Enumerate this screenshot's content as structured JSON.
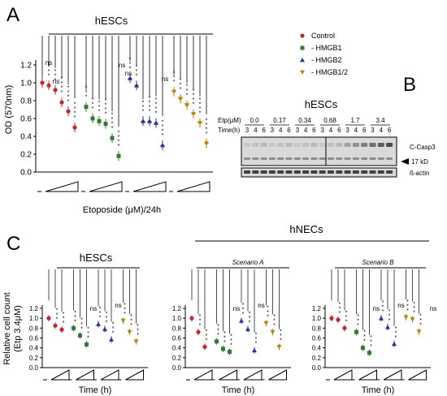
{
  "colors": {
    "control": "#c0282d",
    "hmgb1": "#2e7d32",
    "hmgb2": "#283593",
    "hmgb12": "#b8860b",
    "blot_bg": "#d9d9d9"
  },
  "panels": {
    "a": {
      "letter": "A",
      "title": "hESCs",
      "xlabel": "Etoposide (μM)/24h",
      "ylabel": "OD (570nm)"
    },
    "b": {
      "letter": "B",
      "title": "hESCs",
      "row_etp": "Etp(μM)",
      "row_time": "Time(h)",
      "right_labels": [
        "C-Casp3",
        "17 kD",
        "ß-actin"
      ]
    },
    "c": {
      "letter": "C",
      "group_title": "hNECs",
      "ylabel_line1": "Relative cell count",
      "ylabel_line2": "(Etp 3.4μM)",
      "sub_titles": [
        "hESCs",
        "Scenario A",
        "Scenario B"
      ],
      "xlabel": "Time (h)"
    }
  },
  "legend": [
    "Control",
    "- HMGB1",
    "- HMGB2",
    "- HMGB1/2"
  ],
  "chart_data": [
    {
      "type": "scatter",
      "panel": "A",
      "title": "hESCs",
      "xlabel": "Etoposide (μM)/24h",
      "ylabel": "OD (570nm)",
      "ylim": [
        0,
        1.2
      ],
      "yticks": [
        "0.0",
        "0.2",
        "0.4",
        "0.6",
        "0.8",
        "1.0",
        "1.2"
      ],
      "series": [
        {
          "name": "Control",
          "values": [
            1.0,
            0.97,
            0.92,
            0.78,
            0.68,
            0.5
          ]
        },
        {
          "name": "- HMGB1",
          "values": [
            0.73,
            0.6,
            0.57,
            0.54,
            0.38,
            0.18
          ]
        },
        {
          "name": "- HMGB2",
          "values": [
            1.05,
            0.97,
            0.57,
            0.57,
            0.55,
            0.3
          ]
        },
        {
          "name": "- HMGB1/2",
          "values": [
            0.9,
            0.82,
            0.75,
            0.65,
            0.55,
            0.32
          ]
        }
      ],
      "annotations": [
        "ns",
        "ns",
        "ns",
        "ns",
        "ns"
      ]
    },
    {
      "type": "table",
      "panel": "B",
      "title": "hESCs",
      "etp_uM": [
        "0.0",
        "0.17",
        "0.34",
        "0.68",
        "1.7",
        "3.4"
      ],
      "time_h": [
        "3",
        "4",
        "6",
        "3",
        "4",
        "6",
        "3",
        "4",
        "6",
        "3",
        "4",
        "6",
        "3",
        "4",
        "6",
        "3",
        "4",
        "6"
      ],
      "bands": [
        "C-Casp3",
        "ß-actin"
      ],
      "marker": "17 kD"
    },
    {
      "type": "scatter",
      "panel": "C1",
      "title": "hESCs",
      "xlabel": "Time (h)",
      "ylabel": "Relative cell count (Etp 3.4μM)",
      "ylim": [
        0,
        1.2
      ],
      "yticks": [
        "0.0",
        "0.2",
        "0.4",
        "0.6",
        "0.8",
        "1.0",
        "1.2"
      ],
      "series": [
        {
          "name": "Control",
          "values": [
            1.0,
            0.85,
            0.77
          ]
        },
        {
          "name": "- HMGB1",
          "values": [
            0.8,
            0.65,
            0.47
          ]
        },
        {
          "name": "- HMGB2",
          "values": [
            0.88,
            0.78,
            0.57
          ]
        },
        {
          "name": "- HMGB1/2",
          "values": [
            0.95,
            0.72,
            0.53
          ]
        }
      ],
      "annotations": [
        "ns",
        "ns"
      ]
    },
    {
      "type": "scatter",
      "panel": "C2",
      "title": "Scenario A",
      "xlabel": "Time (h)",
      "ylim": [
        0,
        1.2
      ],
      "yticks": [
        "0.0",
        "0.2",
        "0.4",
        "0.6",
        "0.8",
        "1.0",
        "1.2"
      ],
      "series": [
        {
          "name": "Control",
          "values": [
            1.0,
            0.72,
            0.42
          ]
        },
        {
          "name": "- HMGB1",
          "values": [
            0.53,
            0.38,
            0.32
          ]
        },
        {
          "name": "- HMGB2",
          "values": [
            0.95,
            0.78,
            0.35
          ]
        },
        {
          "name": "- HMGB1/2",
          "values": [
            0.9,
            0.72,
            0.42
          ]
        }
      ],
      "annotations": [
        "ns",
        "ns"
      ]
    },
    {
      "type": "scatter",
      "panel": "C3",
      "title": "Scenario B",
      "xlabel": "Time (h)",
      "ylim": [
        0,
        1.2
      ],
      "yticks": [
        "0.0",
        "0.2",
        "0.4",
        "0.6",
        "0.8",
        "1.0",
        "1.2"
      ],
      "series": [
        {
          "name": "Control",
          "values": [
            1.0,
            0.97,
            0.8
          ]
        },
        {
          "name": "- HMGB1",
          "values": [
            0.72,
            0.4,
            0.3
          ]
        },
        {
          "name": "- HMGB2",
          "values": [
            1.0,
            0.82,
            0.48
          ]
        },
        {
          "name": "- HMGB1/2",
          "values": [
            1.02,
            0.98,
            0.73
          ]
        }
      ],
      "annotations": [
        "ns",
        "ns",
        "ns",
        "ns"
      ]
    }
  ]
}
